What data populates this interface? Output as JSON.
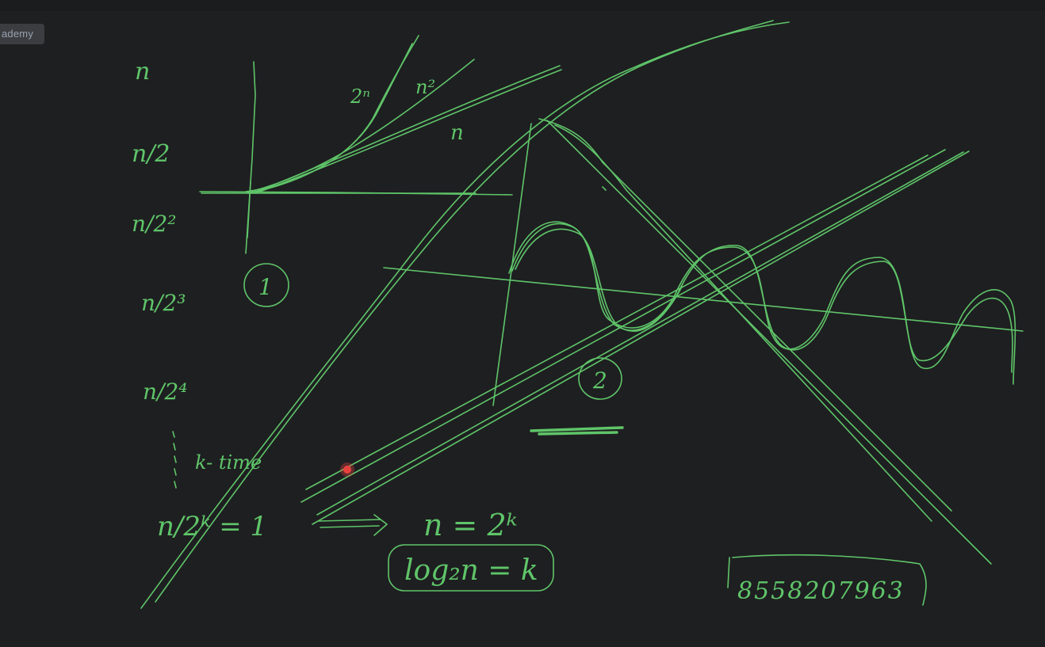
{
  "badge": {
    "label": "ademy"
  },
  "colors": {
    "ink": "#5fc569",
    "background": "#1e1f21",
    "laser": "#e8423f"
  },
  "board": {
    "left_column": {
      "row1": "n",
      "row2": "n/2",
      "row3": "n/2²",
      "row4": "n/2³",
      "row5": "n/2⁴",
      "k_times": "k- time",
      "last": "n/2ᵏ = 1"
    },
    "graph1": {
      "label_2n": "2ⁿ",
      "label_n2": "n²",
      "label_n": "n",
      "number": "1"
    },
    "graph2": {
      "number": "2"
    },
    "equation": "n = 2ᵏ",
    "boxed": "log₂n = k",
    "phone": "8558207963"
  }
}
